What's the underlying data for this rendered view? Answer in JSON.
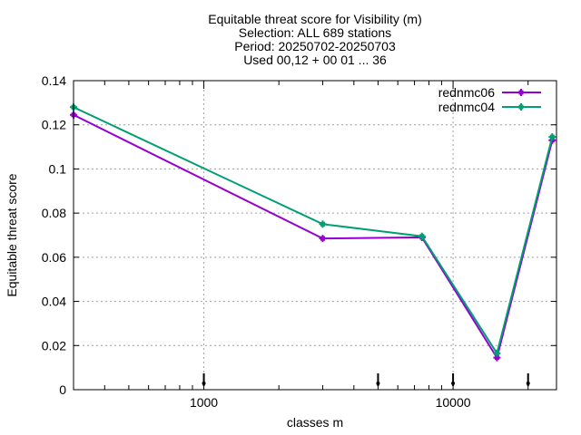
{
  "chart_data": {
    "type": "line",
    "title_lines": [
      "Equitable threat score  for Visibility (m)",
      "Selection: ALL    689 stations",
      "Period: 20250702-20250703",
      "Used 00,12 + 00 01 ... 36"
    ],
    "xlabel": "classes m",
    "ylabel": "Equitable threat score",
    "x_scale": "log",
    "xlim": [
      300,
      26000
    ],
    "ylim": [
      0,
      0.14
    ],
    "x_ticks": [
      1000,
      10000
    ],
    "x_tick_labels": [
      "1000",
      "10000"
    ],
    "y_ticks": [
      0,
      0.02,
      0.04,
      0.06,
      0.08,
      0.1,
      0.12,
      0.14
    ],
    "y_tick_labels": [
      "0",
      "0.02",
      "0.04",
      "0.06",
      "0.08",
      "0.1",
      "0.12",
      "0.14"
    ],
    "grid": true,
    "legend_position": "top-right",
    "series": [
      {
        "name": "rednmc06",
        "color": "#9400d3",
        "x": [
          300,
          3000,
          7500,
          15000,
          25000
        ],
        "y": [
          0.1245,
          0.0685,
          0.069,
          0.0145,
          0.113
        ]
      },
      {
        "name": "rednmc04",
        "color": "#009e73",
        "x": [
          300,
          3000,
          7500,
          15000,
          25000
        ],
        "y": [
          0.128,
          0.075,
          0.0695,
          0.0165,
          0.1145
        ]
      }
    ],
    "marker_x": [
      1000,
      5000,
      10000,
      20000
    ]
  }
}
